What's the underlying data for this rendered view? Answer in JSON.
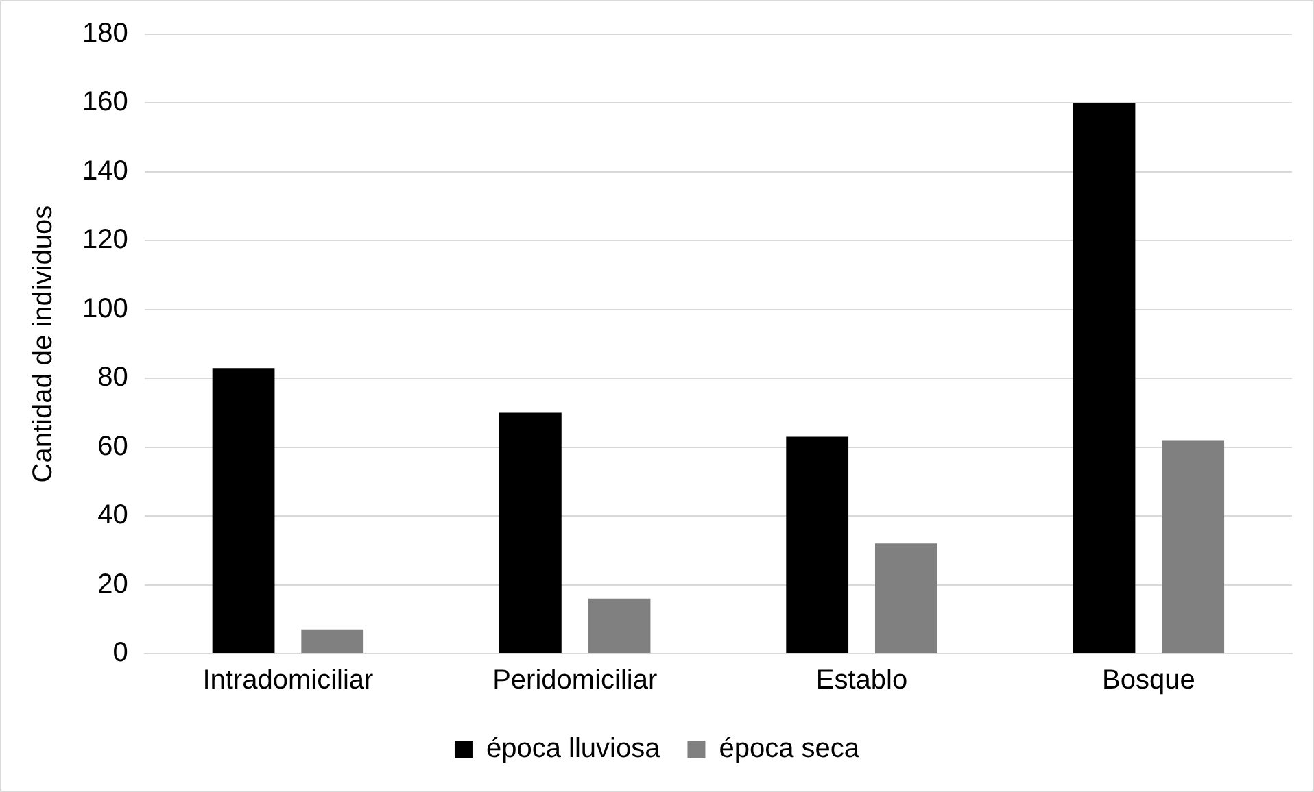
{
  "chart_data": {
    "type": "bar",
    "ylabel": "Cantidad de individuos",
    "categories": [
      "Intradomiciliar",
      "Peridomiciliar",
      "Establo",
      "Bosque"
    ],
    "series": [
      {
        "name": "época lluviosa",
        "color": "#000000",
        "values": [
          83,
          70,
          63,
          160
        ]
      },
      {
        "name": "época seca",
        "color": "#808080",
        "values": [
          7,
          16,
          32,
          62
        ]
      }
    ],
    "ylim": [
      0,
      180
    ],
    "yticks": [
      0,
      20,
      40,
      60,
      80,
      100,
      120,
      140,
      160,
      180
    ],
    "grid": "y",
    "legend": "bottom"
  }
}
